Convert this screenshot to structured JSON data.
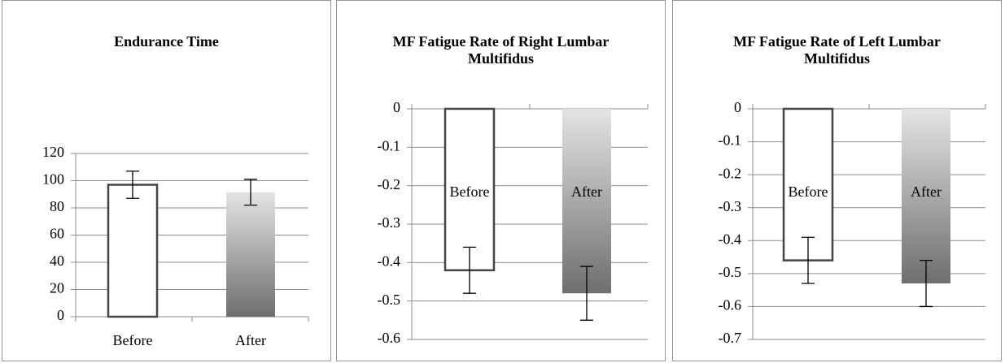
{
  "chart_data": [
    {
      "type": "bar",
      "title": "Endurance Time",
      "categories": [
        "Before",
        "After"
      ],
      "values": [
        97,
        91.5
      ],
      "errors": [
        10,
        9.5
      ],
      "colors": [
        "#ffffff",
        "#6e6e6e"
      ],
      "ylim": [
        0,
        120
      ],
      "yticks": [
        0,
        20,
        40,
        60,
        80,
        100,
        120
      ],
      "grid": true
    },
    {
      "type": "bar",
      "title": "MF Fatigue Rate of Right Lumbar Multifidus",
      "categories": [
        "Before",
        "After"
      ],
      "values": [
        -0.42,
        -0.48
      ],
      "errors": [
        0.06,
        0.07
      ],
      "colors": [
        "#ffffff",
        "#6e6e6e"
      ],
      "ylim": [
        -0.6,
        0
      ],
      "yticks": [
        0,
        -0.1,
        -0.2,
        -0.3,
        -0.4,
        -0.5,
        -0.6
      ],
      "grid": true
    },
    {
      "type": "bar",
      "title": "MF Fatigue Rate of Left Lumbar Multifidus",
      "categories": [
        "Before",
        "After"
      ],
      "values": [
        -0.46,
        -0.53
      ],
      "errors": [
        0.07,
        0.07
      ],
      "colors": [
        "#ffffff",
        "#6e6e6e"
      ],
      "ylim": [
        -0.7,
        0
      ],
      "yticks": [
        0,
        -0.1,
        -0.2,
        -0.3,
        -0.4,
        -0.5,
        -0.6,
        -0.7
      ],
      "grid": true
    }
  ]
}
